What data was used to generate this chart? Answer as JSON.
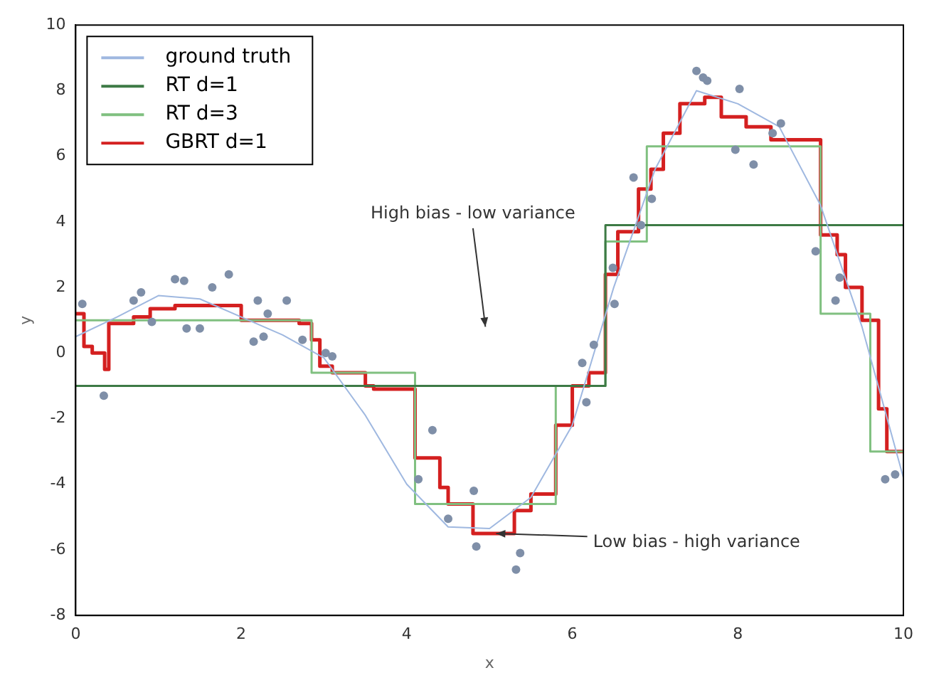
{
  "chart_data": {
    "type": "step",
    "xlabel": "x",
    "ylabel": "y",
    "xlim": [
      0,
      10
    ],
    "ylim": [
      -8,
      10
    ],
    "xticks": [
      0,
      2,
      4,
      6,
      8,
      10
    ],
    "yticks": [
      -8,
      -6,
      -4,
      -2,
      0,
      2,
      4,
      6,
      8,
      10
    ],
    "grid": false,
    "legend": "top left",
    "marker": "none",
    "annotations": [
      "High bias - low variance",
      {
        "text": "Low bias - high variance",
        "x": 5.08,
        "y": -5.5
      }
    ],
    "series": [
      {
        "name": "ground truth",
        "type": "line",
        "color": "#9fb8e0",
        "x": [
          0,
          0.5,
          1,
          1.5,
          2,
          2.5,
          3,
          3.5,
          4,
          4.5,
          5,
          5.5,
          6,
          6.5,
          7,
          7.5,
          8,
          8.5,
          9,
          9.5,
          10
        ],
        "values": [
          0.5,
          1.1,
          1.75,
          1.65,
          1.1,
          0.55,
          -0.15,
          -1.9,
          -4.0,
          -5.3,
          -5.35,
          -4.4,
          -2.2,
          2.0,
          5.6,
          8.0,
          7.6,
          6.9,
          4.5,
          0.8,
          -3.8
        ]
      },
      {
        "name": "RT d=1",
        "color": "#3d7a45",
        "x": [
          0,
          6.4,
          10
        ],
        "values": [
          -1.0,
          3.9,
          3.9
        ]
      },
      {
        "name": "RT d=3",
        "color": "#80c080",
        "x": [
          0,
          2.85,
          4.1,
          5.8,
          6.4,
          6.9,
          9.0,
          9.6,
          10
        ],
        "values": [
          1.0,
          -0.6,
          -4.6,
          -1.0,
          3.4,
          6.3,
          1.2,
          -3.0,
          -3.0
        ]
      },
      {
        "name": "GBRT d=1",
        "color": "#d42020",
        "x": [
          0,
          0.1,
          0.2,
          0.35,
          0.4,
          0.7,
          0.9,
          1.2,
          2.0,
          2.7,
          2.85,
          2.95,
          3.1,
          3.5,
          3.6,
          4.1,
          4.4,
          4.5,
          4.8,
          5.3,
          5.5,
          5.8,
          6.0,
          6.2,
          6.4,
          6.55,
          6.8,
          6.95,
          7.1,
          7.3,
          7.6,
          7.8,
          8.1,
          8.4,
          9.0,
          9.2,
          9.3,
          9.5,
          9.7,
          9.8,
          10
        ],
        "values": [
          1.2,
          0.2,
          0.0,
          -0.5,
          0.9,
          1.1,
          1.35,
          1.45,
          1.0,
          0.9,
          0.4,
          -0.4,
          -0.6,
          -1.0,
          -1.1,
          -3.2,
          -4.1,
          -4.6,
          -5.5,
          -4.8,
          -4.3,
          -2.2,
          -1.0,
          -0.6,
          2.4,
          3.7,
          5.0,
          5.6,
          6.7,
          7.6,
          7.8,
          7.2,
          6.9,
          6.5,
          3.6,
          3.0,
          2.0,
          1.0,
          -1.7,
          -3.0,
          -3.0
        ]
      },
      {
        "type": "scatter",
        "marker": "circle",
        "color": "#7f8fa8",
        "x": [
          0.08,
          0.7,
          0.79,
          1.2,
          1.31,
          1.65,
          1.85,
          2.2,
          2.32,
          2.55,
          0.92,
          1.34,
          1.5,
          0.34,
          2.15,
          2.27,
          2.74,
          3.02,
          3.1,
          4.31,
          4.14,
          4.5,
          4.81,
          4.84,
          5.37,
          5.32,
          6.17,
          6.12,
          6.26,
          9.78,
          6.49,
          6.51,
          6.74,
          6.96,
          6.83,
          7.5,
          7.58,
          7.63,
          8.02,
          8.52,
          8.42,
          7.97,
          8.19,
          8.94,
          9.23,
          9.18,
          9.9
        ],
        "values": [
          1.5,
          1.6,
          1.85,
          2.25,
          2.2,
          2.0,
          2.4,
          1.6,
          1.2,
          1.6,
          0.95,
          0.75,
          0.75,
          -1.3,
          0.35,
          0.5,
          0.4,
          0.0,
          -0.1,
          -2.35,
          -3.85,
          -5.05,
          -4.2,
          -5.9,
          -6.1,
          -6.6,
          -1.5,
          -0.3,
          0.25,
          -3.85,
          2.6,
          1.5,
          5.35,
          4.7,
          3.9,
          8.6,
          8.4,
          8.3,
          8.05,
          7.0,
          6.7,
          6.2,
          5.75,
          3.1,
          2.3,
          1.6,
          -3.7
        ]
      }
    ]
  }
}
